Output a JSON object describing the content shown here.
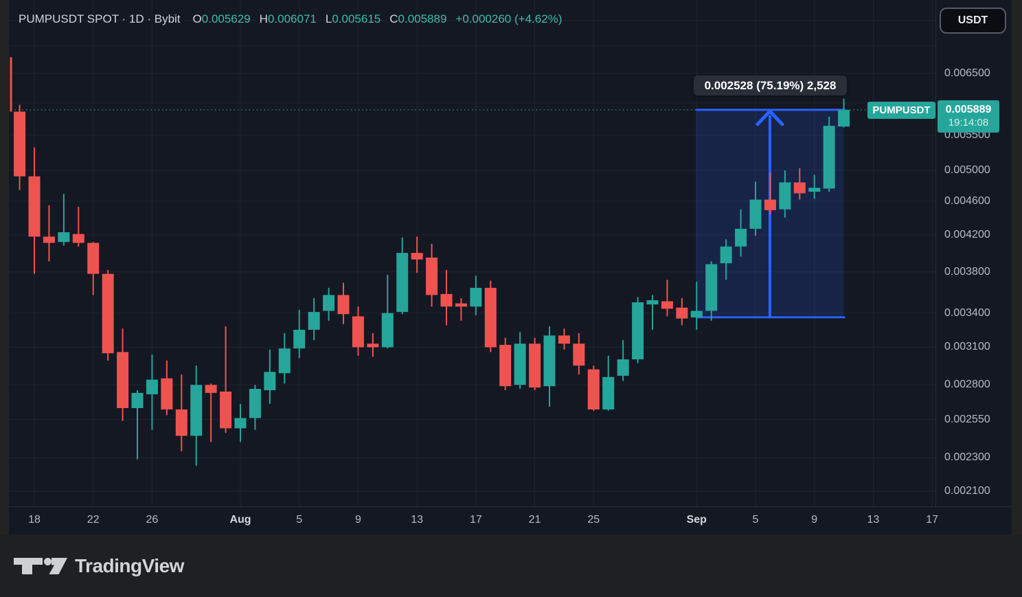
{
  "header": {
    "symbol_title": "PUMPUSDT SPOT · 1D · Bybit",
    "ohlc": {
      "o": {
        "label": "O",
        "value": "0.005629"
      },
      "h": {
        "label": "H",
        "value": "0.006071"
      },
      "l": {
        "label": "L",
        "value": "0.005615"
      },
      "c": {
        "label": "C",
        "value": "0.005889"
      }
    },
    "change": "+0.000260 (+4.62%)"
  },
  "toolbar": {
    "currency_button": "USDT"
  },
  "measure_tool": {
    "tooltip": "0.002528 (75.19%) 2,528",
    "price_change": "0.002528",
    "percent_change": "75.19%",
    "ticks": "2,528",
    "range_low": 0.003361,
    "range_high": 0.005889,
    "start_date": "Sep 1",
    "end_date": "Sep 11"
  },
  "price_scale": {
    "symbol_tag": "PUMPUSDT",
    "current": {
      "price": "0.005889",
      "countdown": "19:14:08"
    },
    "ticks": [
      {
        "label": "0.006500",
        "value": 0.0065
      },
      {
        "label": "0.005500",
        "value": 0.0055
      },
      {
        "label": "0.005000",
        "value": 0.005
      },
      {
        "label": "0.004600",
        "value": 0.0046
      },
      {
        "label": "0.004200",
        "value": 0.0042
      },
      {
        "label": "0.003800",
        "value": 0.0038
      },
      {
        "label": "0.003400",
        "value": 0.0034
      },
      {
        "label": "0.003100",
        "value": 0.0031
      },
      {
        "label": "0.002800",
        "value": 0.0028
      },
      {
        "label": "0.002550",
        "value": 0.00255
      },
      {
        "label": "0.002300",
        "value": 0.0023
      },
      {
        "label": "0.002100",
        "value": 0.0021
      }
    ]
  },
  "time_scale": {
    "labels": [
      {
        "label": "18",
        "di": 2,
        "month": false
      },
      {
        "label": "22",
        "di": 6,
        "month": false
      },
      {
        "label": "26",
        "di": 10,
        "month": false
      },
      {
        "label": "Aug",
        "di": 16,
        "month": true
      },
      {
        "label": "5",
        "di": 20,
        "month": false
      },
      {
        "label": "9",
        "di": 24,
        "month": false
      },
      {
        "label": "13",
        "di": 28,
        "month": false
      },
      {
        "label": "17",
        "di": 32,
        "month": false
      },
      {
        "label": "21",
        "di": 36,
        "month": false
      },
      {
        "label": "25",
        "di": 40,
        "month": false
      },
      {
        "label": "Sep",
        "di": 47,
        "month": true
      },
      {
        "label": "5",
        "di": 51,
        "month": false
      },
      {
        "label": "9",
        "di": 55,
        "month": false
      },
      {
        "label": "13",
        "di": 59,
        "month": false
      },
      {
        "label": "17",
        "di": 63,
        "month": false
      }
    ]
  },
  "footer": {
    "logo_text": "TradingView"
  },
  "colors": {
    "up": "#26a69a",
    "down": "#ef5350",
    "legend_value": "#3cbda9",
    "measure_blue": "#2962ff",
    "measure_fill": "rgba(41,98,255,0.17)",
    "dotted_line": "#46b3a7",
    "background": "#141823",
    "grid": "rgba(178,181,190,0.08)",
    "text_primary": "#d1d4dc",
    "text_axis": "#b7bbc5",
    "tooltip_bg": "#2a2e39",
    "label_bg": "#26a69a"
  },
  "chart_data": {
    "type": "candlestick",
    "title": "PUMPUSDT SPOT · 1D · Bybit",
    "symbol": "PUMPUSDT",
    "interval": "1D",
    "exchange": "Bybit",
    "y_axis": {
      "scale": "log",
      "ticks": [
        0.0065,
        0.0055,
        0.005,
        0.0046,
        0.0042,
        0.0038,
        0.0034,
        0.0031,
        0.0028,
        0.00255,
        0.0023,
        0.0021
      ]
    },
    "x_axis": {
      "start": "Jul 16",
      "end": "Sep 11",
      "grid": "on"
    },
    "last_candle": {
      "open": 0.005629,
      "high": 0.006071,
      "low": 0.005615,
      "close": 0.005889,
      "change": "+0.000260 (+4.62%)"
    },
    "measure": {
      "from_index": 47,
      "to_index": 57,
      "price_low": 0.003361,
      "price_high": 0.005889,
      "label": "0.002528 (75.19%) 2,528"
    },
    "candles": [
      {
        "d": "Jul 16",
        "o": 0.00675,
        "h": 0.00679,
        "l": 0.00586,
        "c": 0.0059,
        "clipped": true
      },
      {
        "d": "Jul 17",
        "o": 0.00586,
        "h": 0.00597,
        "l": 0.00474,
        "c": 0.00492
      },
      {
        "d": "Jul 18",
        "o": 0.00492,
        "h": 0.00532,
        "l": 0.00378,
        "c": 0.00418
      },
      {
        "d": "Jul 19",
        "o": 0.00418,
        "h": 0.00455,
        "l": 0.00391,
        "c": 0.00411
      },
      {
        "d": "Jul 20",
        "o": 0.00412,
        "h": 0.00469,
        "l": 0.00408,
        "c": 0.00423
      },
      {
        "d": "Jul 21",
        "o": 0.00421,
        "h": 0.00453,
        "l": 0.00407,
        "c": 0.00411
      },
      {
        "d": "Jul 22",
        "o": 0.00411,
        "h": 0.00412,
        "l": 0.00357,
        "c": 0.00378
      },
      {
        "d": "Jul 23",
        "o": 0.00378,
        "h": 0.00382,
        "l": 0.00299,
        "c": 0.00305
      },
      {
        "d": "Jul 24",
        "o": 0.00306,
        "h": 0.00326,
        "l": 0.00254,
        "c": 0.00263
      },
      {
        "d": "Jul 25",
        "o": 0.00263,
        "h": 0.00276,
        "l": 0.00229,
        "c": 0.00274
      },
      {
        "d": "Jul 26",
        "o": 0.00273,
        "h": 0.00304,
        "l": 0.00248,
        "c": 0.00284
      },
      {
        "d": "Jul 27",
        "o": 0.00285,
        "h": 0.00299,
        "l": 0.00258,
        "c": 0.00262
      },
      {
        "d": "Jul 28",
        "o": 0.00262,
        "h": 0.00288,
        "l": 0.00234,
        "c": 0.00244
      },
      {
        "d": "Jul 29",
        "o": 0.00244,
        "h": 0.00295,
        "l": 0.00225,
        "c": 0.0028
      },
      {
        "d": "Jul 30",
        "o": 0.0028,
        "h": 0.00281,
        "l": 0.0024,
        "c": 0.00274
      },
      {
        "d": "Jul 31",
        "o": 0.00275,
        "h": 0.00328,
        "l": 0.00246,
        "c": 0.00249
      },
      {
        "d": "Aug 1",
        "o": 0.00249,
        "h": 0.00266,
        "l": 0.0024,
        "c": 0.00256
      },
      {
        "d": "Aug 2",
        "o": 0.00256,
        "h": 0.0028,
        "l": 0.00248,
        "c": 0.00277
      },
      {
        "d": "Aug 3",
        "o": 0.00276,
        "h": 0.00308,
        "l": 0.00266,
        "c": 0.0029
      },
      {
        "d": "Aug 4",
        "o": 0.00289,
        "h": 0.00322,
        "l": 0.00281,
        "c": 0.00309
      },
      {
        "d": "Aug 5",
        "o": 0.00309,
        "h": 0.00343,
        "l": 0.00301,
        "c": 0.00325
      },
      {
        "d": "Aug 6",
        "o": 0.00325,
        "h": 0.00354,
        "l": 0.00316,
        "c": 0.00341
      },
      {
        "d": "Aug 7",
        "o": 0.00342,
        "h": 0.00364,
        "l": 0.00333,
        "c": 0.00357
      },
      {
        "d": "Aug 8",
        "o": 0.00357,
        "h": 0.00369,
        "l": 0.0033,
        "c": 0.00339
      },
      {
        "d": "Aug 9",
        "o": 0.00337,
        "h": 0.00346,
        "l": 0.00303,
        "c": 0.0031
      },
      {
        "d": "Aug 10",
        "o": 0.00313,
        "h": 0.00322,
        "l": 0.00302,
        "c": 0.0031
      },
      {
        "d": "Aug 11",
        "o": 0.0031,
        "h": 0.00377,
        "l": 0.00309,
        "c": 0.0034
      },
      {
        "d": "Aug 12",
        "o": 0.00341,
        "h": 0.00417,
        "l": 0.00339,
        "c": 0.004
      },
      {
        "d": "Aug 13",
        "o": 0.004,
        "h": 0.00418,
        "l": 0.00379,
        "c": 0.00393
      },
      {
        "d": "Aug 14",
        "o": 0.00395,
        "h": 0.0041,
        "l": 0.00346,
        "c": 0.00357
      },
      {
        "d": "Aug 15",
        "o": 0.00358,
        "h": 0.00382,
        "l": 0.00329,
        "c": 0.00346
      },
      {
        "d": "Aug 16",
        "o": 0.00349,
        "h": 0.00354,
        "l": 0.00333,
        "c": 0.00346
      },
      {
        "d": "Aug 17",
        "o": 0.00346,
        "h": 0.00376,
        "l": 0.00338,
        "c": 0.00364
      },
      {
        "d": "Aug 18",
        "o": 0.00364,
        "h": 0.00371,
        "l": 0.00306,
        "c": 0.0031
      },
      {
        "d": "Aug 19",
        "o": 0.00312,
        "h": 0.00318,
        "l": 0.00276,
        "c": 0.00279
      },
      {
        "d": "Aug 20",
        "o": 0.0028,
        "h": 0.00323,
        "l": 0.00277,
        "c": 0.00313
      },
      {
        "d": "Aug 21",
        "o": 0.00313,
        "h": 0.00318,
        "l": 0.00276,
        "c": 0.00278
      },
      {
        "d": "Aug 22",
        "o": 0.00279,
        "h": 0.00328,
        "l": 0.00264,
        "c": 0.0032
      },
      {
        "d": "Aug 23",
        "o": 0.0032,
        "h": 0.00326,
        "l": 0.00308,
        "c": 0.00313
      },
      {
        "d": "Aug 24",
        "o": 0.00313,
        "h": 0.00322,
        "l": 0.00288,
        "c": 0.00295
      },
      {
        "d": "Aug 25",
        "o": 0.00292,
        "h": 0.00295,
        "l": 0.00261,
        "c": 0.00262
      },
      {
        "d": "Aug 26",
        "o": 0.00262,
        "h": 0.00303,
        "l": 0.00261,
        "c": 0.00286
      },
      {
        "d": "Aug 27",
        "o": 0.00287,
        "h": 0.00316,
        "l": 0.00283,
        "c": 0.003
      },
      {
        "d": "Aug 28",
        "o": 0.003,
        "h": 0.00355,
        "l": 0.00297,
        "c": 0.0035
      },
      {
        "d": "Aug 29",
        "o": 0.00348,
        "h": 0.00357,
        "l": 0.00325,
        "c": 0.00352
      },
      {
        "d": "Aug 30",
        "o": 0.00351,
        "h": 0.00372,
        "l": 0.00337,
        "c": 0.00344
      },
      {
        "d": "Aug 31",
        "o": 0.00345,
        "h": 0.00354,
        "l": 0.00329,
        "c": 0.00335
      },
      {
        "d": "Sep 1",
        "o": 0.00336,
        "h": 0.0037,
        "l": 0.00325,
        "c": 0.00342
      },
      {
        "d": "Sep 2",
        "o": 0.00342,
        "h": 0.00391,
        "l": 0.00333,
        "c": 0.00388
      },
      {
        "d": "Sep 3",
        "o": 0.00389,
        "h": 0.00415,
        "l": 0.00372,
        "c": 0.00407
      },
      {
        "d": "Sep 4",
        "o": 0.00407,
        "h": 0.0045,
        "l": 0.00396,
        "c": 0.00427
      },
      {
        "d": "Sep 5",
        "o": 0.00427,
        "h": 0.00485,
        "l": 0.00419,
        "c": 0.00462
      },
      {
        "d": "Sep 6",
        "o": 0.00462,
        "h": 0.00497,
        "l": 0.00444,
        "c": 0.00449
      },
      {
        "d": "Sep 7",
        "o": 0.0045,
        "h": 0.005,
        "l": 0.0044,
        "c": 0.00484
      },
      {
        "d": "Sep 8",
        "o": 0.00484,
        "h": 0.00503,
        "l": 0.00462,
        "c": 0.0047
      },
      {
        "d": "Sep 9",
        "o": 0.00472,
        "h": 0.00494,
        "l": 0.00463,
        "c": 0.00477
      },
      {
        "d": "Sep 10",
        "o": 0.00476,
        "h": 0.00578,
        "l": 0.00472,
        "c": 0.00564
      },
      {
        "d": "Sep 11",
        "o": 0.005629,
        "h": 0.006071,
        "l": 0.005615,
        "c": 0.005889
      }
    ]
  }
}
